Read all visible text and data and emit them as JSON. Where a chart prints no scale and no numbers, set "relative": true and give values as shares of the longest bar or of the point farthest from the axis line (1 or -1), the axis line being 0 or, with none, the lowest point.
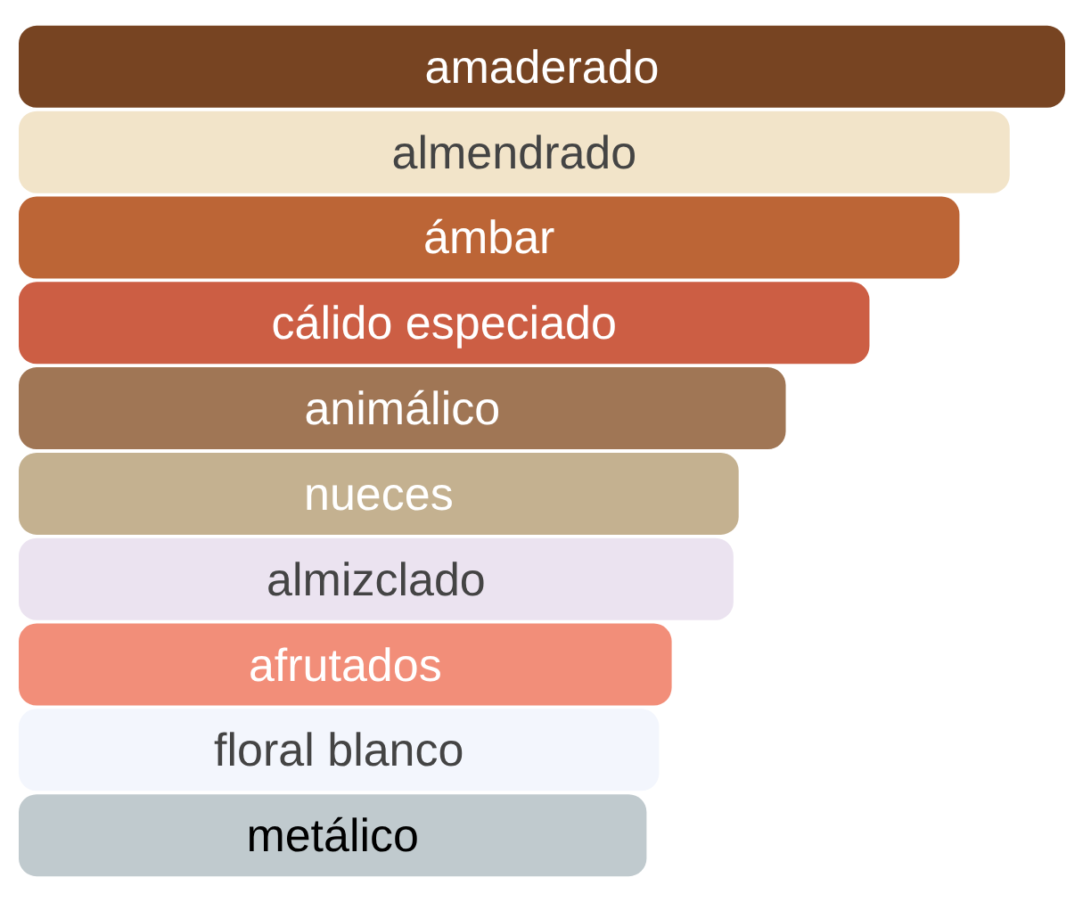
{
  "chart_data": {
    "type": "bar",
    "orientation": "horizontal",
    "relative": true,
    "data_labels": false,
    "categories": [
      "amaderado",
      "almendrado",
      "ámbar",
      "cálido especiado",
      "animálico",
      "nueces",
      "almizclado",
      "afrutados",
      "floral blanco",
      "metálico"
    ],
    "values": [
      1,
      0.947,
      0.899,
      0.813,
      0.733,
      0.688,
      0.683,
      0.624,
      0.612,
      0.6
    ],
    "colors": [
      "#774422",
      "#f2e4c9",
      "#bc6536",
      "#cc5e44",
      "#a07655",
      "#c4b190",
      "#ebe3f0",
      "#f28e79",
      "#f3f6fd",
      "#c0cace"
    ]
  }
}
